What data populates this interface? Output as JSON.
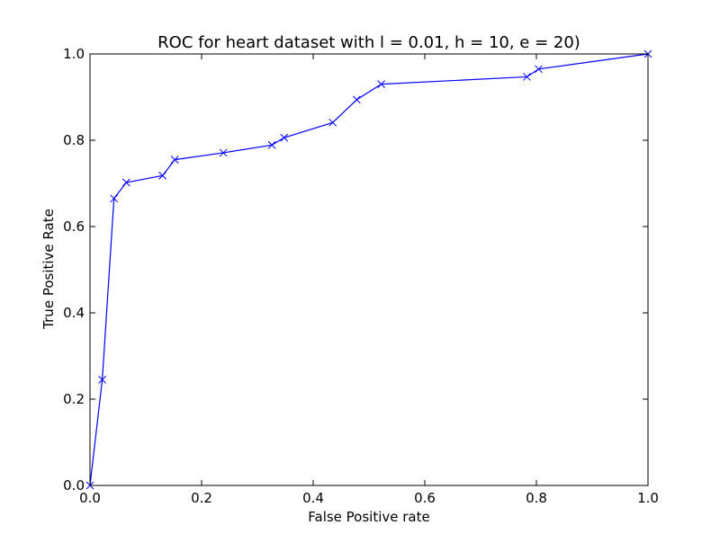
{
  "chart_data": {
    "type": "line",
    "title": "ROC for heart dataset with l = 0.01, h = 10, e = 20)",
    "xlabel": "False Positive rate",
    "ylabel": "True Positive Rate",
    "xlim": [
      0.0,
      1.0
    ],
    "ylim": [
      0.0,
      1.0
    ],
    "x_ticks": [
      "0.0",
      "0.2",
      "0.4",
      "0.6",
      "0.8",
      "1.0"
    ],
    "y_ticks": [
      "0.0",
      "0.2",
      "0.4",
      "0.6",
      "0.8",
      "1.0"
    ],
    "grid": false,
    "legend": null,
    "series": [
      {
        "color": "#0000ff",
        "marker": "x",
        "x": [
          0.0,
          0.022,
          0.043,
          0.065,
          0.13,
          0.152,
          0.239,
          0.326,
          0.348,
          0.435,
          0.478,
          0.522,
          0.783,
          0.804,
          1.0
        ],
        "y": [
          0.0,
          0.245,
          0.665,
          0.702,
          0.718,
          0.755,
          0.771,
          0.789,
          0.806,
          0.841,
          0.894,
          0.93,
          0.947,
          0.965,
          1.0
        ]
      }
    ]
  }
}
